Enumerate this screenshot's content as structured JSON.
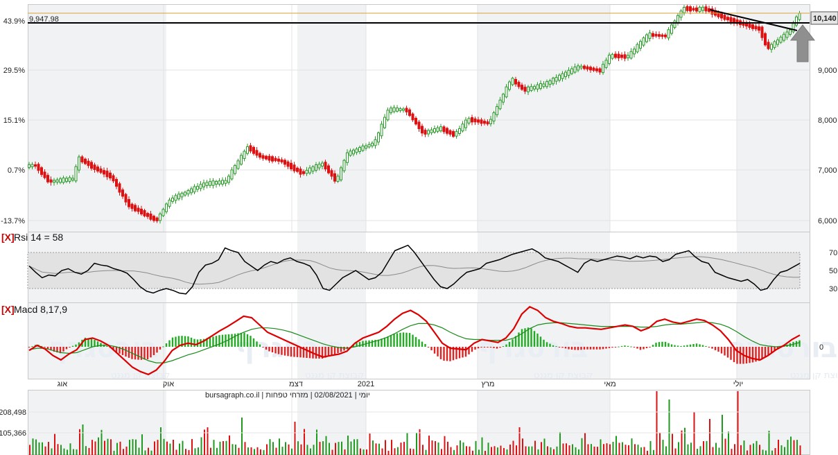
{
  "chart_data": {
    "type": "candlestick",
    "price": {
      "y_ticks_right": [
        "10,140",
        "9,000",
        "8,000",
        "7,000",
        "6,000"
      ],
      "y_ticks_left": [
        "43.9%",
        "29.5%",
        "15.1%",
        "0.7%",
        "-13.7%"
      ],
      "reference_line_value": "9,947.98",
      "current_value": "10,140",
      "colors": {
        "up": "#2a9a2a",
        "down": "#dd1111",
        "reference": "#000000",
        "level": "#d9a23a"
      }
    },
    "x_labels": [
      "אוג",
      "אוק",
      "דצמ",
      "2021",
      "מרץ",
      "מאי",
      "יולי"
    ],
    "info_line": "יומי | 02/08/2021 | מזרחי טפחות | bursagraph.co.il",
    "rsi": {
      "label": "Rsi 14 = 58",
      "toggle": "[X]",
      "y_ticks": [
        "70",
        "50",
        "30"
      ],
      "values": [
        55,
        48,
        42,
        45,
        44,
        50,
        52,
        48,
        46,
        50,
        58,
        56,
        55,
        52,
        50,
        47,
        40,
        32,
        27,
        25,
        28,
        30,
        28,
        25,
        24,
        32,
        48,
        56,
        58,
        62,
        75,
        72,
        70,
        60,
        55,
        50,
        56,
        60,
        58,
        62,
        64,
        60,
        58,
        55,
        45,
        30,
        28,
        35,
        42,
        46,
        50,
        45,
        40,
        42,
        48,
        60,
        72,
        75,
        78,
        70,
        60,
        50,
        40,
        32,
        30,
        35,
        42,
        48,
        50,
        52,
        58,
        60,
        62,
        65,
        68,
        70,
        72,
        74,
        70,
        64,
        62,
        60,
        56,
        52,
        48,
        58,
        62,
        60,
        62,
        64,
        66,
        65,
        63,
        66,
        64,
        66,
        65,
        60,
        62,
        68,
        70,
        72,
        65,
        60,
        58,
        48,
        45,
        42,
        40,
        38,
        40,
        35,
        28,
        30,
        40,
        48,
        50,
        54,
        58
      ]
    },
    "macd": {
      "label": "Macd 8,17,9",
      "toggle": "[X]",
      "y_ticks": [
        "0"
      ],
      "colors": {
        "macd": "#dd0000",
        "signal": "#1a8a1a",
        "hist_pos": "#22aa22",
        "hist_neg": "#dd2222"
      },
      "macd_values": [
        -5,
        2,
        -3,
        -12,
        -18,
        -10,
        -4,
        10,
        12,
        8,
        2,
        -8,
        -18,
        -28,
        -34,
        -38,
        -32,
        -20,
        -5,
        2,
        5,
        3,
        8,
        15,
        22,
        28,
        35,
        42,
        40,
        30,
        20,
        15,
        10,
        5,
        0,
        -5,
        -10,
        -14,
        -12,
        -10,
        -6,
        5,
        12,
        16,
        20,
        28,
        38,
        46,
        50,
        44,
        35,
        20,
        5,
        -2,
        -3,
        -4,
        5,
        10,
        8,
        6,
        12,
        25,
        45,
        55,
        50,
        40,
        35,
        32,
        28,
        26,
        26,
        25,
        24,
        26,
        28,
        30,
        28,
        22,
        26,
        35,
        38,
        34,
        32,
        35,
        38,
        36,
        30,
        22,
        10,
        -5,
        -12,
        -16,
        -18,
        -12,
        -4,
        2,
        10,
        16
      ],
      "signal_values": [
        -4,
        -2,
        -2,
        -5,
        -8,
        -9,
        -8,
        -4,
        0,
        2,
        2,
        0,
        -4,
        -9,
        -14,
        -19,
        -22,
        -22,
        -19,
        -15,
        -11,
        -8,
        -4,
        0,
        4,
        9,
        15,
        20,
        24,
        26,
        26,
        25,
        23,
        20,
        16,
        12,
        8,
        4,
        1,
        -1,
        -2,
        0,
        3,
        6,
        9,
        13,
        18,
        24,
        29,
        32,
        32,
        30,
        26,
        20,
        15,
        11,
        10,
        10,
        9,
        9,
        9,
        12,
        18,
        25,
        30,
        32,
        33,
        33,
        32,
        31,
        30,
        29,
        28,
        28,
        28,
        28,
        28,
        27,
        27,
        28,
        30,
        31,
        31,
        32,
        33,
        34,
        33,
        31,
        27,
        21,
        14,
        8,
        3,
        1,
        0,
        1,
        3,
        6
      ]
    },
    "volume": {
      "y_ticks": [
        "208,498",
        "105,366"
      ],
      "colors": {
        "up": "#1f9a1f",
        "down": "#dd1111"
      }
    },
    "watermark": "בורסגרף",
    "watermark_sub": "קבוצת קן מגנט"
  }
}
